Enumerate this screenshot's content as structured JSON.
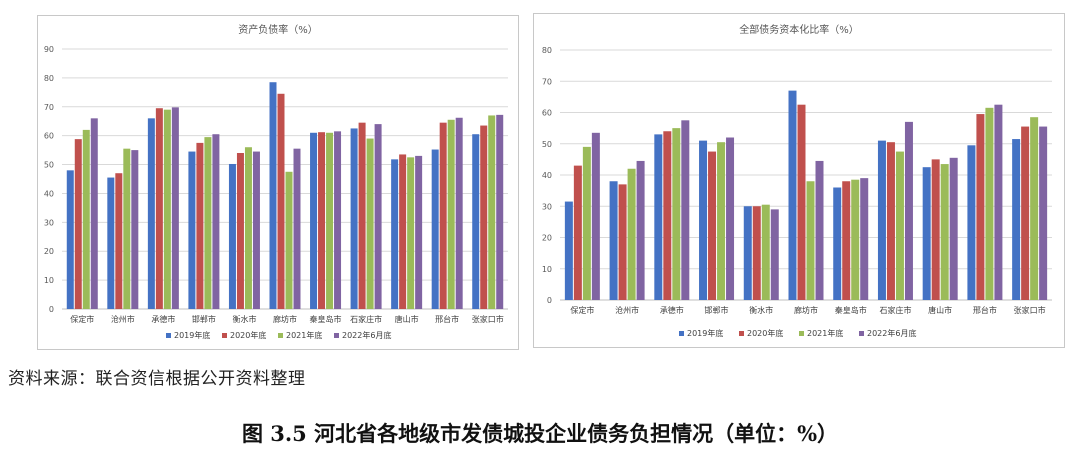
{
  "source_note": "资料来源：联合资信根据公开资料整理",
  "figure_caption": "图 3.5    河北省各地级市发债城投企业债务负担情况（单位：%）",
  "series_colors": [
    "#4472c4",
    "#c0504d",
    "#9bbb59",
    "#8064a2"
  ],
  "chart_data": [
    {
      "type": "bar",
      "title": "资产负债率（%）",
      "categories": [
        "保定市",
        "沧州市",
        "承德市",
        "邯郸市",
        "衡水市",
        "廊坊市",
        "秦皇岛市",
        "石家庄市",
        "唐山市",
        "邢台市",
        "张家口市"
      ],
      "ylim": [
        0,
        90
      ],
      "yticks": [
        0,
        10,
        20,
        30,
        40,
        50,
        60,
        70,
        80,
        90
      ],
      "grid": true,
      "legend_position": "bottom",
      "series": [
        {
          "name": "2019年底",
          "values": [
            48.0,
            45.5,
            66.0,
            54.5,
            50.2,
            78.5,
            61.0,
            62.5,
            51.8,
            55.2,
            60.5
          ]
        },
        {
          "name": "2020年底",
          "values": [
            58.8,
            47.0,
            69.5,
            57.5,
            54.0,
            74.5,
            61.2,
            64.5,
            53.5,
            64.5,
            63.5
          ]
        },
        {
          "name": "2021年底",
          "values": [
            62.0,
            55.5,
            69.0,
            59.5,
            56.0,
            47.5,
            61.0,
            59.0,
            52.5,
            65.5,
            67.0
          ]
        },
        {
          "name": "2022年6月底",
          "values": [
            66.0,
            55.0,
            69.8,
            60.5,
            54.5,
            55.5,
            61.5,
            64.0,
            53.0,
            66.2,
            67.2
          ]
        }
      ]
    },
    {
      "type": "bar",
      "title": "全部债务资本化比率（%）",
      "categories": [
        "保定市",
        "沧州市",
        "承德市",
        "邯郸市",
        "衡水市",
        "廊坊市",
        "秦皇岛市",
        "石家庄市",
        "唐山市",
        "邢台市",
        "张家口市"
      ],
      "ylim": [
        0,
        80
      ],
      "yticks": [
        0,
        10,
        20,
        30,
        40,
        50,
        60,
        70,
        80
      ],
      "grid": true,
      "legend_position": "bottom",
      "series": [
        {
          "name": "2019年底",
          "values": [
            31.5,
            38.0,
            53.0,
            51.0,
            30.0,
            67.0,
            36.0,
            51.0,
            42.5,
            49.5,
            51.5
          ]
        },
        {
          "name": "2020年底",
          "values": [
            43.0,
            37.0,
            54.0,
            47.5,
            30.0,
            62.5,
            38.0,
            50.5,
            45.0,
            59.5,
            55.5
          ]
        },
        {
          "name": "2021年底",
          "values": [
            49.0,
            42.0,
            55.0,
            50.5,
            30.5,
            38.0,
            38.5,
            47.5,
            43.5,
            61.5,
            58.5
          ]
        },
        {
          "name": "2022年6月底",
          "values": [
            53.5,
            44.5,
            57.5,
            52.0,
            29.0,
            44.5,
            39.0,
            57.0,
            45.5,
            62.5,
            55.5
          ]
        }
      ]
    }
  ]
}
